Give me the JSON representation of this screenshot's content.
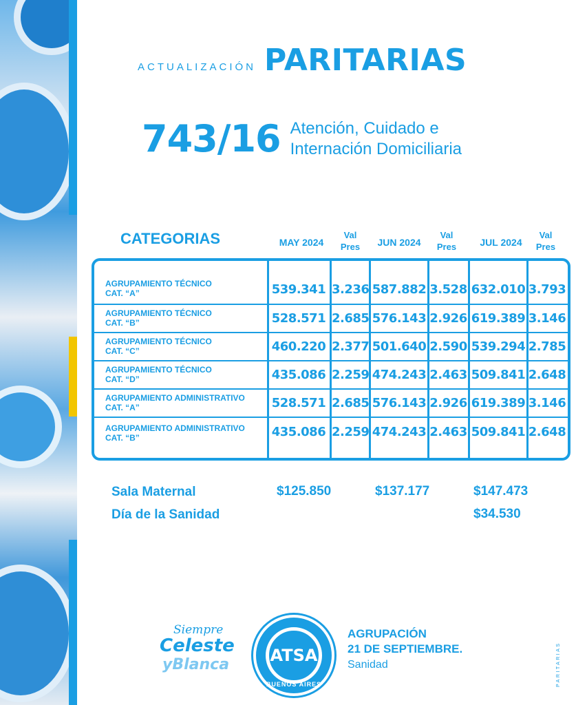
{
  "header": {
    "kicker": "ACTUALIZACIÓN",
    "title": "PARITARIAS"
  },
  "convenio": {
    "number": "743/16",
    "line1": "Atención, Cuidado e",
    "line2": "Internación Domiciliaria"
  },
  "table": {
    "headers": {
      "categorias": "CATEGORIAS",
      "may": "MAY 2024",
      "val1_a": "Val",
      "val1_b": "Pres",
      "jun": "JUN 2024",
      "val2_a": "Val",
      "val2_b": "Pres",
      "jul": "JUL 2024",
      "val3_a": "Val",
      "val3_b": "Pres"
    },
    "rows": [
      {
        "l1": "AGRUPAMIENTO TÉCNICO",
        "l2": "CAT. “A”",
        "may": "539.341",
        "vp1": "3.236",
        "jun": "587.882",
        "vp2": "3.528",
        "jul": "632.010",
        "vp3": "3.793"
      },
      {
        "l1": "AGRUPAMIENTO TÉCNICO",
        "l2": "CAT. “B”",
        "may": "528.571",
        "vp1": "2.685",
        "jun": "576.143",
        "vp2": "2.926",
        "jul": "619.389",
        "vp3": "3.146"
      },
      {
        "l1": "AGRUPAMIENTO TÉCNICO",
        "l2": "CAT. “C”",
        "may": "460.220",
        "vp1": "2.377",
        "jun": "501.640",
        "vp2": "2.590",
        "jul": "539.294",
        "vp3": "2.785"
      },
      {
        "l1": "AGRUPAMIENTO TÉCNICO",
        "l2": "CAT. “D”",
        "may": "435.086",
        "vp1": "2.259",
        "jun": "474.243",
        "vp2": "2.463",
        "jul": "509.841",
        "vp3": "2.648"
      },
      {
        "l1": "AGRUPAMIENTO ADMINISTRATIVO",
        "l2": "CAT. “A”",
        "may": "528.571",
        "vp1": "2.685",
        "jun": "576.143",
        "vp2": "2.926",
        "jul": "619.389",
        "vp3": "3.146"
      },
      {
        "l1": "AGRUPAMIENTO ADMINISTRATIVO",
        "l2": "CAT. “B”",
        "may": "435.086",
        "vp1": "2.259",
        "jun": "474.243",
        "vp2": "2.463",
        "jul": "509.841",
        "vp3": "2.648"
      }
    ]
  },
  "extras": {
    "sala_label": "Sala Maternal",
    "sala_may": "$125.850",
    "sala_jun": "$137.177",
    "sala_jul": "$147.473",
    "sanidad_label": "Día de la Sanidad",
    "sanidad_jul": "$34.530"
  },
  "footer": {
    "script1": "Siempre",
    "script2": "Celeste",
    "script3": "yBlanca",
    "logo_text": "ATSA",
    "logo_ring": "BUENOS AIRES",
    "agrup1": "AGRUPACIÓN",
    "agrup2": "21 DE SEPTIEMBRE.",
    "agrup3": "Sanidad",
    "side": "PARITARIAS"
  },
  "colors": {
    "accent": "#1a9ee3",
    "yellow": "#f2c500",
    "light": "#7ec8f1"
  }
}
